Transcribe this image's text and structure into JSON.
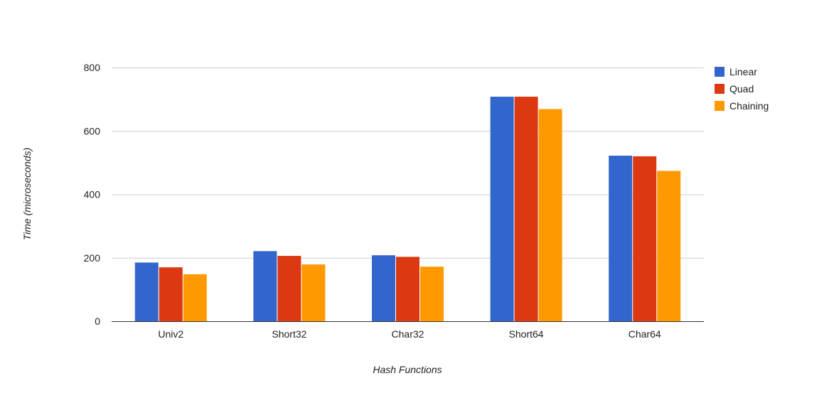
{
  "chart_data": {
    "type": "bar",
    "title": "",
    "xlabel": "Hash Functions",
    "ylabel": "Time (microseconds)",
    "ylim": [
      0,
      800
    ],
    "yticks": [
      0,
      200,
      400,
      600,
      800
    ],
    "grid": true,
    "legend_position": "right",
    "categories": [
      "Univ2",
      "Short32",
      "Char32",
      "Short64",
      "Char64"
    ],
    "series": [
      {
        "name": "Linear",
        "color": "#3366cc",
        "values": [
          185,
          221,
          208,
          708,
          522
        ]
      },
      {
        "name": "Quad",
        "color": "#dc3912",
        "values": [
          170,
          206,
          203,
          708,
          520
        ]
      },
      {
        "name": "Chaining",
        "color": "#ff9900",
        "values": [
          148,
          179,
          172,
          669,
          474
        ]
      }
    ]
  }
}
